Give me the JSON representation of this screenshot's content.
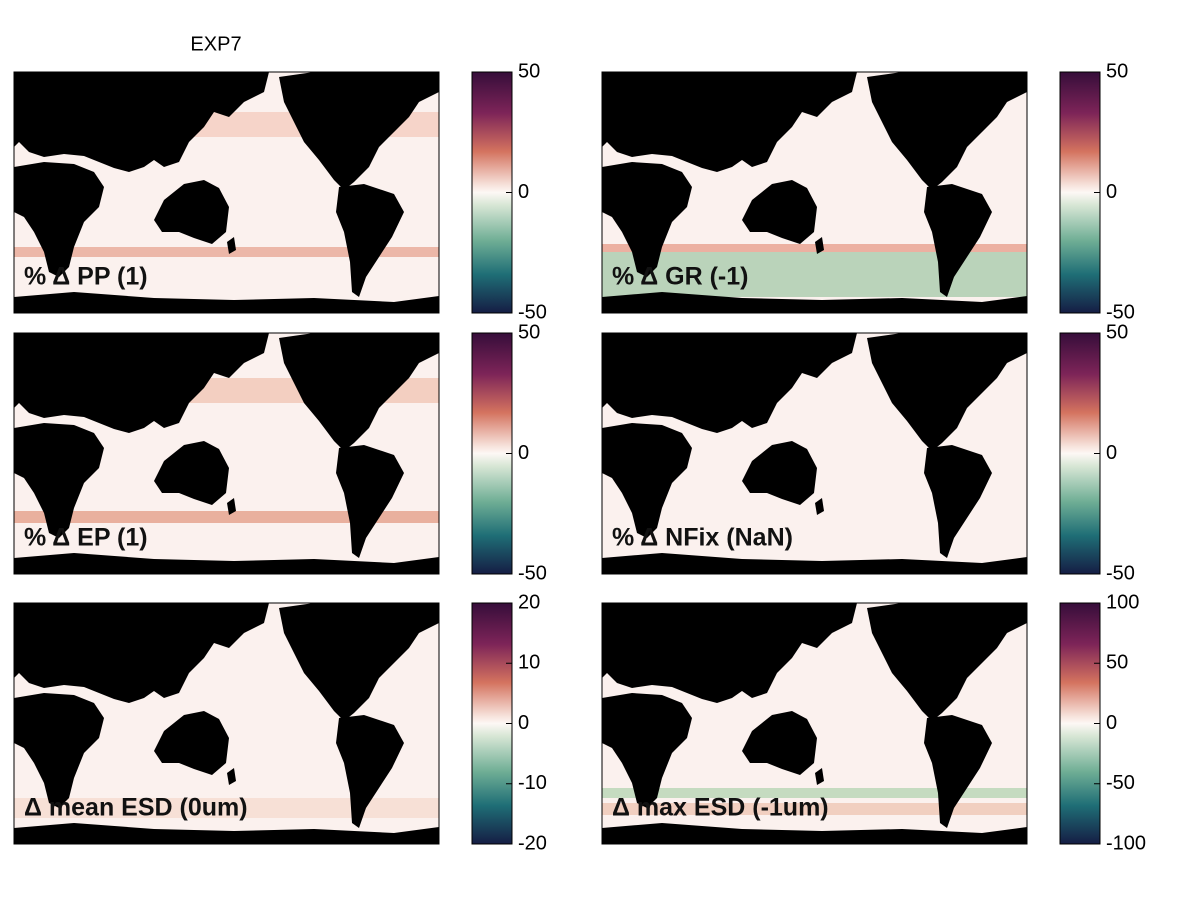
{
  "title": "EXP7",
  "panels": [
    {
      "label": "% Δ PP (1)",
      "clim": [
        -50,
        50
      ],
      "ticks": [
        50,
        0,
        -50
      ]
    },
    {
      "label": "% Δ GR (-1)",
      "clim": [
        -50,
        50
      ],
      "ticks": [
        50,
        0,
        -50
      ]
    },
    {
      "label": "% Δ EP (1)",
      "clim": [
        -50,
        50
      ],
      "ticks": [
        50,
        0,
        -50
      ]
    },
    {
      "label": "% Δ NFix (NaN)",
      "clim": [
        -50,
        50
      ],
      "ticks": [
        50,
        0,
        -50
      ]
    },
    {
      "label": "Δ mean ESD (0um)",
      "clim": [
        -20,
        20
      ],
      "ticks": [
        20,
        10,
        0,
        -10,
        -20
      ]
    },
    {
      "label": "Δ max ESD (-1um)",
      "clim": [
        -100,
        100
      ],
      "ticks": [
        100,
        50,
        0,
        -50,
        -100
      ]
    }
  ]
}
